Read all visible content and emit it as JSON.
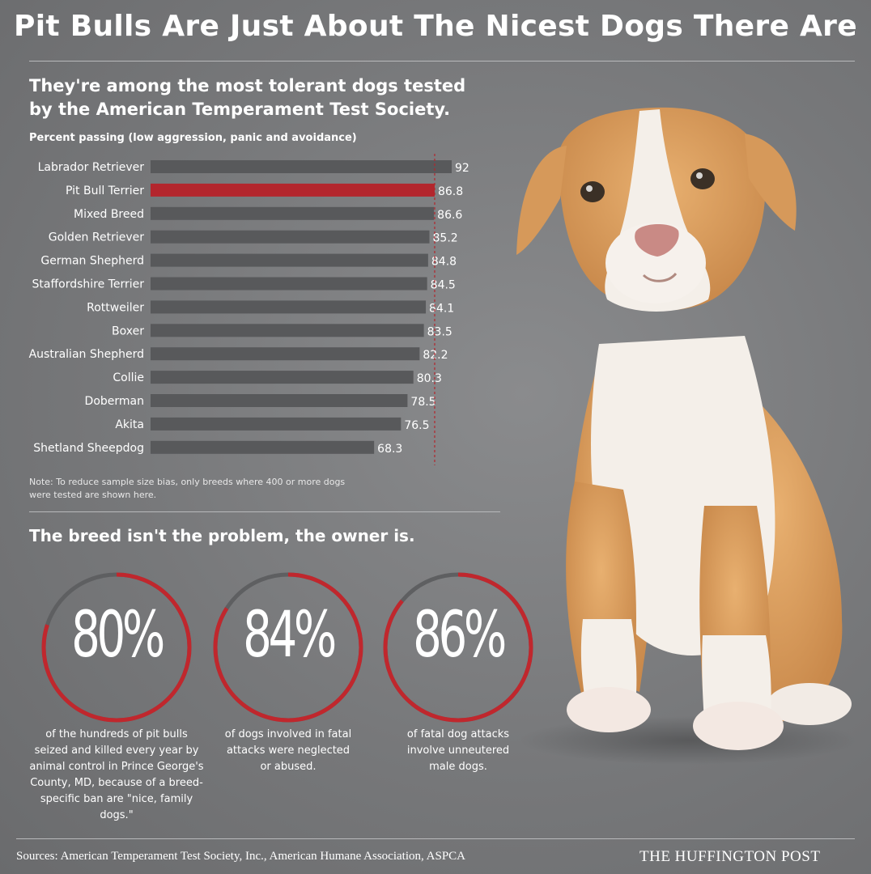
{
  "title": "Pit Bulls Are Just About The Nicest Dogs There Are",
  "subtitle": "They're among the most tolerant dogs tested by the American Temperament Test Society.",
  "note": "Note: To reduce sample size bias, only breeds where 400 or more dogs were tested are shown here.",
  "section2_title": "The breed isn't the problem, the owner is.",
  "stats": [
    {
      "value": "80%",
      "fraction": 0.8,
      "caption": "of the hundreds of pit bulls seized and killed every year by animal control in Prince George's County, MD, because of a breed-specific ban are \"nice, family dogs.\""
    },
    {
      "value": "84%",
      "fraction": 0.84,
      "caption": "of dogs involved in fatal attacks were neglected or abused."
    },
    {
      "value": "86%",
      "fraction": 0.86,
      "caption": "of fatal dog attacks involve unneutered male dogs."
    }
  ],
  "footer": {
    "sources": "Sources: American Temperament Test Society, Inc., American Humane Association, ASPCA",
    "brand": "THE HUFFINGTON POST"
  },
  "colors": {
    "bar": "#58595b",
    "highlight": "#b3262d",
    "ring_red": "#c0272d",
    "ring_gray": "#5e5f61"
  },
  "chart_data": {
    "type": "bar",
    "orientation": "horizontal",
    "ylabel": "Percent passing (low aggression, panic and avoidance)",
    "categories": [
      "Labrador Retriever",
      "Pit Bull Terrier",
      "Mixed Breed",
      "Golden Retriever",
      "German Shepherd",
      "Staffordshire Terrier",
      "Rottweiler",
      "Boxer",
      "Australian Shepherd",
      "Collie",
      "Doberman",
      "Akita",
      "Shetland Sheepdog"
    ],
    "values": [
      92,
      86.8,
      86.6,
      85.2,
      84.8,
      84.5,
      84.1,
      83.5,
      82.2,
      80.3,
      78.5,
      76.5,
      68.3
    ],
    "value_labels": [
      "92",
      "86.8",
      "86.6",
      "85.2",
      "84.8",
      "84.5",
      "84.1",
      "83.5",
      "82.2",
      "80.3",
      "78.5",
      "76.5",
      "68.3"
    ],
    "highlight": "Pit Bull Terrier",
    "reference_line": 86.8,
    "grid": false
  }
}
